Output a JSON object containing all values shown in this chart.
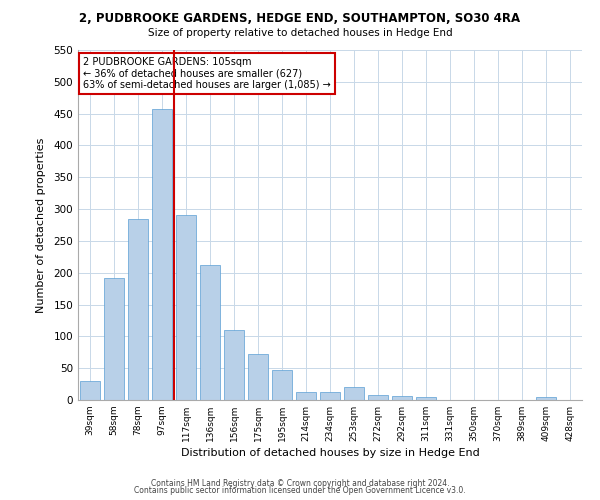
{
  "title": "2, PUDBROOKE GARDENS, HEDGE END, SOUTHAMPTON, SO30 4RA",
  "subtitle": "Size of property relative to detached houses in Hedge End",
  "xlabel": "Distribution of detached houses by size in Hedge End",
  "ylabel": "Number of detached properties",
  "bar_color": "#b8d0e8",
  "bar_edge_color": "#5a9fd4",
  "categories": [
    "39sqm",
    "58sqm",
    "78sqm",
    "97sqm",
    "117sqm",
    "136sqm",
    "156sqm",
    "175sqm",
    "195sqm",
    "214sqm",
    "234sqm",
    "253sqm",
    "272sqm",
    "292sqm",
    "311sqm",
    "331sqm",
    "350sqm",
    "370sqm",
    "389sqm",
    "409sqm",
    "428sqm"
  ],
  "values": [
    30,
    192,
    285,
    457,
    291,
    212,
    110,
    73,
    47,
    13,
    12,
    20,
    8,
    7,
    4,
    0,
    0,
    0,
    0,
    5,
    0
  ],
  "ylim": [
    0,
    550
  ],
  "yticks": [
    0,
    50,
    100,
    150,
    200,
    250,
    300,
    350,
    400,
    450,
    500,
    550
  ],
  "red_line_x": 3.5,
  "annotation_title": "2 PUDBROOKE GARDENS: 105sqm",
  "annotation_line1": "← 36% of detached houses are smaller (627)",
  "annotation_line2": "63% of semi-detached houses are larger (1,085) →",
  "annotation_box_color": "#ffffff",
  "annotation_box_edge": "#cc0000",
  "red_line_color": "#cc0000",
  "footer1": "Contains HM Land Registry data © Crown copyright and database right 2024.",
  "footer2": "Contains public sector information licensed under the Open Government Licence v3.0.",
  "background_color": "#ffffff",
  "grid_color": "#c8d8e8"
}
